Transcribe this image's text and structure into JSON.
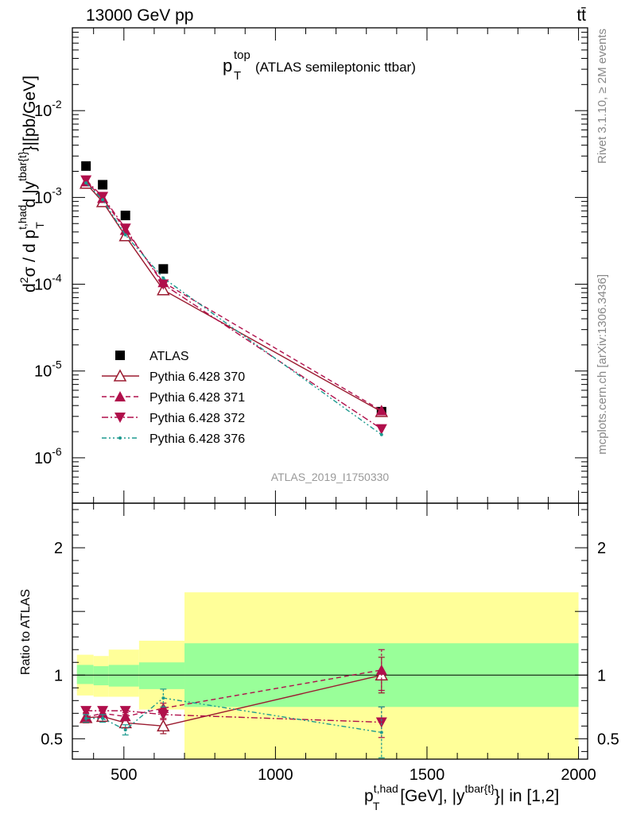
{
  "header": {
    "energy_label": "13000 GeV pp",
    "process_label": "tt̄",
    "side_label_rivet": "Rivet 3.1.10, ≥ 2M events",
    "side_label_mcplots": "mcplots.cern.ch [arXiv:1306.3436]"
  },
  "chart_data": [
    {
      "type": "scatter",
      "title_main": "p",
      "title_sup": "top",
      "title_sub": "T",
      "title_suffix": "(ATLAS semileptonic ttbar)",
      "analysis_label": "ATLAS_2019_I1750330",
      "ylabel": "d²σ / d p_T^{t,had} d |y^{tbar{t}}| [pb/GeV]",
      "ylabel_parts": {
        "d": "d",
        "two": "2",
        "sigma_d": "σ /  d p",
        "sup1": "t,had",
        "sub1": "T",
        "mid": " d  |y",
        "sup2": "tbar{t}",
        "end": "}|[pb/GeV]"
      },
      "y_scale": "log",
      "xlim": [
        330,
        2030
      ],
      "ylim": [
        3e-07,
        0.09
      ],
      "y_ticks": [
        {
          "value": 1e-06,
          "exp": "-6"
        },
        {
          "value": 1e-05,
          "exp": "-5"
        },
        {
          "value": 0.0001,
          "exp": "-4"
        },
        {
          "value": 0.001,
          "exp": "-3"
        },
        {
          "value": 0.01,
          "exp": "-2"
        }
      ],
      "y_tick_base": "10",
      "legend_position": "bottom-left",
      "series": [
        {
          "name": "ATLAS",
          "marker": "square",
          "color": "#000000",
          "x": [
            375,
            430,
            505,
            630,
            1350
          ],
          "y": [
            0.0023,
            0.0014,
            0.00062,
            0.00015,
            3.4e-06
          ]
        },
        {
          "name": "Pythia 6.428 370",
          "marker": "triangle-up-open",
          "line": "solid",
          "color": "#9b1b30",
          "x": [
            375,
            430,
            505,
            630,
            1350
          ],
          "y": [
            0.00145,
            0.00089,
            0.00036,
            8.6e-05,
            3.4e-06
          ]
        },
        {
          "name": "Pythia 6.428 371",
          "marker": "triangle-up",
          "line": "dashed",
          "color": "#b00f4b",
          "x": [
            375,
            430,
            505,
            630,
            1350
          ],
          "y": [
            0.00152,
            0.00098,
            0.00042,
            0.000105,
            3.5e-06
          ]
        },
        {
          "name": "Pythia 6.428 372",
          "marker": "triangle-down",
          "line": "dashdot",
          "color": "#b00f4b",
          "x": [
            375,
            430,
            505,
            630,
            1350
          ],
          "y": [
            0.00158,
            0.00102,
            0.00044,
            0.0001,
            2.15e-06
          ]
        },
        {
          "name": "Pythia 6.428 376",
          "marker": "dot",
          "line": "dashdotdot",
          "color": "#1d9a8f",
          "x": [
            375,
            430,
            505,
            630,
            1350
          ],
          "y": [
            0.00147,
            0.00094,
            0.00037,
            0.000118,
            1.85e-06
          ]
        }
      ]
    },
    {
      "type": "scatter",
      "ylabel": "Ratio to ATLAS",
      "xlabel_parts": {
        "p": "p",
        "sup1": "t,had",
        "sub1": "T",
        "mid": " [GeV], |y",
        "sup2": "tbar{t}",
        "end": "}| in [1,2]"
      },
      "xlim": [
        330,
        2030
      ],
      "ylim": [
        0.34,
        2.35
      ],
      "x_ticks": [
        500,
        1000,
        1500,
        2000
      ],
      "y_ticks": [
        0.5,
        1,
        2
      ],
      "y_tick_labels": [
        "0.5",
        "1",
        "2"
      ],
      "reference_line": 1,
      "bands": [
        {
          "x0": 345,
          "x1": 400,
          "inner": [
            0.93,
            1.08
          ],
          "outer": [
            0.84,
            1.16
          ]
        },
        {
          "x0": 400,
          "x1": 450,
          "inner": [
            0.92,
            1.07
          ],
          "outer": [
            0.83,
            1.15
          ]
        },
        {
          "x0": 450,
          "x1": 550,
          "inner": [
            0.91,
            1.08
          ],
          "outer": [
            0.83,
            1.2
          ]
        },
        {
          "x0": 550,
          "x1": 700,
          "inner": [
            0.89,
            1.1
          ],
          "outer": [
            0.73,
            1.27
          ]
        },
        {
          "x0": 700,
          "x1": 2000,
          "inner": [
            0.75,
            1.25
          ],
          "outer": [
            0.34,
            1.65
          ]
        }
      ],
      "series": [
        {
          "name": "Pythia 6.428 370",
          "x": [
            375,
            430,
            505,
            630,
            1350
          ],
          "y": [
            0.665,
            0.675,
            0.625,
            0.6,
            1.0
          ],
          "err": [
            0.04,
            0.04,
            0.04,
            0.06,
            0.14
          ]
        },
        {
          "name": "Pythia 6.428 371",
          "x": [
            375,
            430,
            505,
            630,
            1350
          ],
          "y": [
            0.67,
            0.7,
            0.675,
            0.74,
            1.04
          ],
          "err": [
            0.03,
            0.03,
            0.03,
            0.04,
            0.16
          ]
        },
        {
          "name": "Pythia 6.428 372",
          "x": [
            375,
            430,
            505,
            630,
            1350
          ],
          "y": [
            0.72,
            0.72,
            0.72,
            0.69,
            0.63
          ],
          "err": [
            0.03,
            0.03,
            0.03,
            0.04,
            0.12
          ]
        },
        {
          "name": "Pythia 6.428 376",
          "x": [
            375,
            430,
            505,
            630,
            1350
          ],
          "y": [
            0.66,
            0.66,
            0.57,
            0.82,
            0.55
          ],
          "err": [
            0.03,
            0.03,
            0.04,
            0.07,
            0.2
          ]
        }
      ]
    }
  ]
}
